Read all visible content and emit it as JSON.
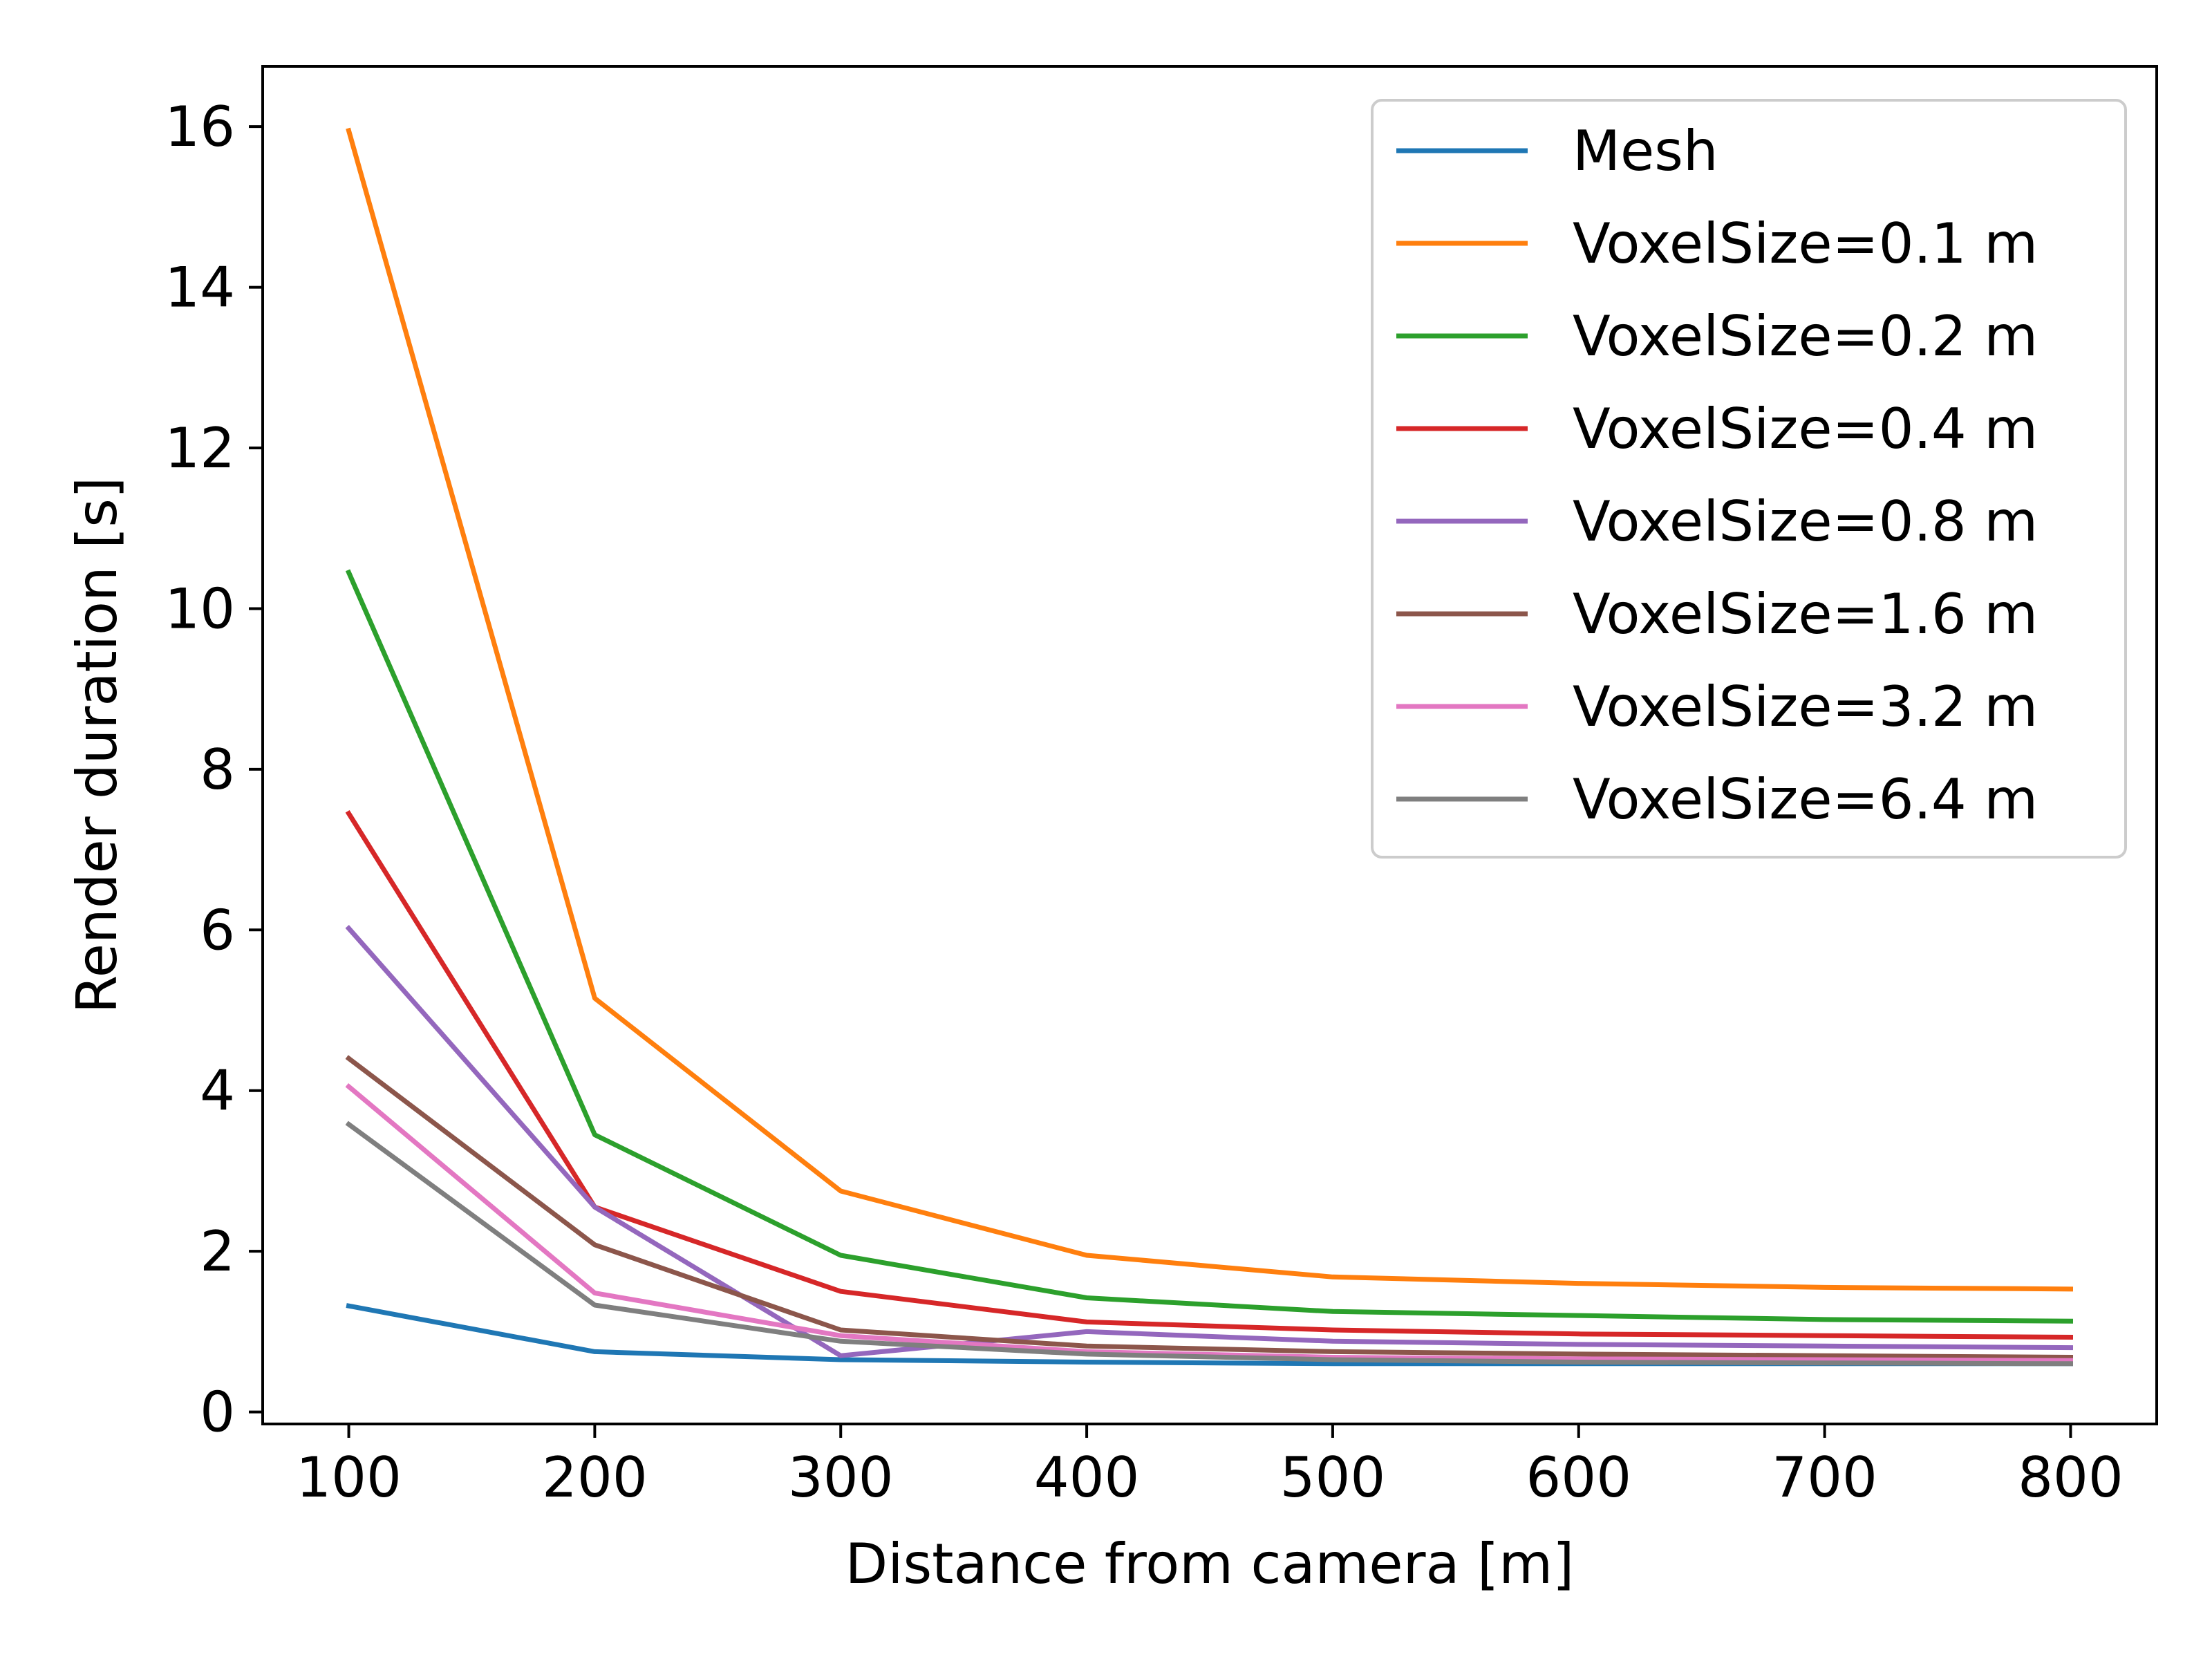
{
  "chart_data": {
    "type": "line",
    "title": "",
    "xlabel": "Distance from camera [m]",
    "ylabel": "Render duration [s]",
    "x": [
      100,
      200,
      300,
      400,
      500,
      600,
      700,
      800
    ],
    "xticks": [
      "100",
      "200",
      "300",
      "400",
      "500",
      "600",
      "700",
      "800"
    ],
    "yticks": [
      "0",
      "2",
      "4",
      "6",
      "8",
      "10",
      "12",
      "14",
      "16"
    ],
    "xlim": [
      65,
      835
    ],
    "ylim": [
      -0.15,
      16.75
    ],
    "grid": false,
    "legend_position": "top-right",
    "series": [
      {
        "name": "Mesh",
        "color": "#1f77b4",
        "values": [
          1.32,
          0.75,
          0.65,
          0.62,
          0.6,
          0.6,
          0.6,
          0.6
        ]
      },
      {
        "name": "VoxelSize=0.1 m",
        "color": "#ff7f0e",
        "values": [
          15.95,
          5.15,
          2.75,
          1.95,
          1.68,
          1.6,
          1.55,
          1.53
        ]
      },
      {
        "name": "VoxelSize=0.2 m",
        "color": "#2ca02c",
        "values": [
          10.45,
          3.45,
          1.95,
          1.42,
          1.25,
          1.2,
          1.15,
          1.13
        ]
      },
      {
        "name": "VoxelSize=0.4 m",
        "color": "#d62728",
        "values": [
          7.45,
          2.55,
          1.5,
          1.12,
          1.02,
          0.97,
          0.95,
          0.93
        ]
      },
      {
        "name": "VoxelSize=0.8 m",
        "color": "#9467bd",
        "values": [
          6.02,
          2.55,
          0.7,
          1.0,
          0.88,
          0.84,
          0.82,
          0.8
        ]
      },
      {
        "name": "VoxelSize=1.6 m",
        "color": "#8c564b",
        "values": [
          4.4,
          2.08,
          1.02,
          0.82,
          0.75,
          0.72,
          0.7,
          0.68
        ]
      },
      {
        "name": "VoxelSize=3.2 m",
        "color": "#e377c2",
        "values": [
          4.05,
          1.48,
          0.95,
          0.75,
          0.68,
          0.66,
          0.65,
          0.64
        ]
      },
      {
        "name": "VoxelSize=6.4 m",
        "color": "#7f7f7f",
        "values": [
          3.58,
          1.33,
          0.88,
          0.72,
          0.65,
          0.62,
          0.61,
          0.6
        ]
      }
    ]
  }
}
